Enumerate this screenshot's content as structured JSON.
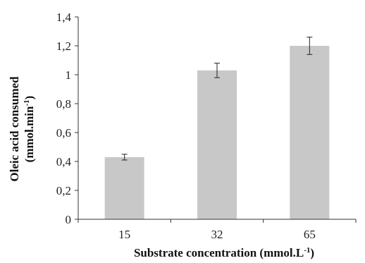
{
  "chart_data": {
    "type": "bar",
    "categories": [
      "15",
      "32",
      "65"
    ],
    "values": [
      0.43,
      1.03,
      1.2
    ],
    "errors": [
      0.02,
      0.05,
      0.06
    ],
    "ylim": [
      0,
      1.4
    ],
    "yticks": [
      0,
      0.2,
      0.4,
      0.6,
      0.8,
      1.0,
      1.2,
      1.4
    ],
    "ytick_labels": [
      "0",
      "0,2",
      "0,4",
      "0,6",
      "0,8",
      "1",
      "1,2",
      "1,4"
    ],
    "xlabel": {
      "main": "Substrate concentration (mmol.L",
      "sup": "-1",
      "end": ")"
    },
    "ylabel": {
      "line1": "Oleic acid  consumed",
      "line2_main": "(mmol.min",
      "line2_sup": "-1",
      "line2_end": ")"
    },
    "grid": false,
    "bar_color": "#c8c8c8",
    "axis_color": "#333333"
  }
}
